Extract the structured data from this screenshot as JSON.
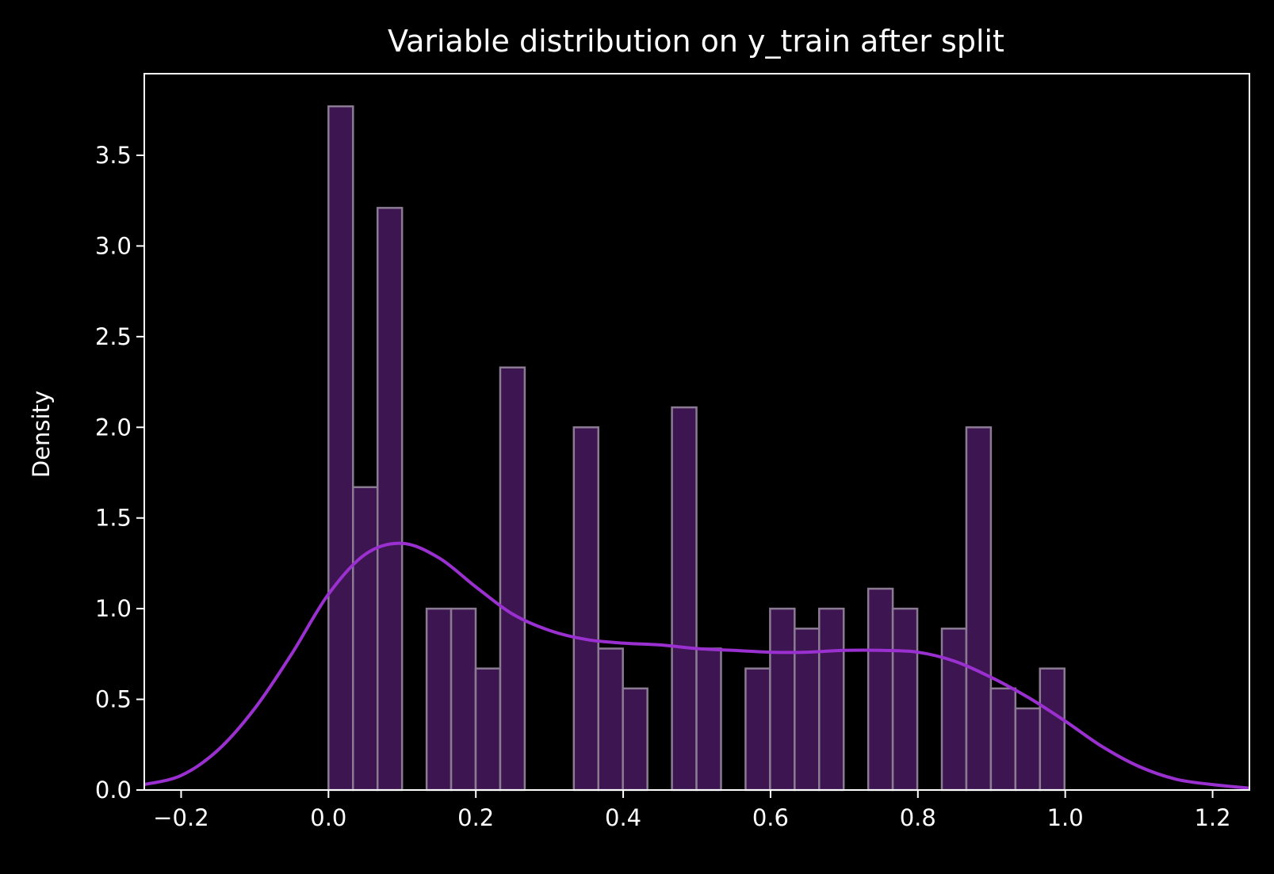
{
  "chart_data": {
    "type": "bar",
    "title": "Variable distribution on y_train after split",
    "xlabel": "",
    "ylabel": "Density",
    "xlim": [
      -0.25,
      1.25
    ],
    "ylim": [
      0.0,
      3.95
    ],
    "grid": false,
    "legend": "none",
    "x_ticks": [
      -0.2,
      0.0,
      0.2,
      0.4,
      0.6,
      0.8,
      1.0,
      1.2
    ],
    "x_tick_labels": [
      "−0.2",
      "0.0",
      "0.2",
      "0.4",
      "0.6",
      "0.8",
      "1.0",
      "1.2"
    ],
    "y_ticks": [
      0.0,
      0.5,
      1.0,
      1.5,
      2.0,
      2.5,
      3.0,
      3.5
    ],
    "y_tick_labels": [
      "0.0",
      "0.5",
      "1.0",
      "1.5",
      "2.0",
      "2.5",
      "3.0",
      "3.5"
    ],
    "histogram": {
      "bin_start": 0.0,
      "bin_width": 0.0333,
      "values": [
        3.77,
        1.67,
        3.21,
        0,
        1.0,
        1.0,
        0.67,
        2.33,
        0,
        0,
        2.0,
        0.78,
        0.56,
        0,
        2.11,
        0.78,
        0,
        0.67,
        1.0,
        0.89,
        1.0,
        0,
        1.11,
        1.0,
        0,
        0.89,
        2.0,
        0.56,
        0.45,
        0.67
      ],
      "fill_color": "#3d1550",
      "edge_color": "#8a7b93"
    },
    "kde": {
      "color": "#9b30d0",
      "x": [
        -0.25,
        -0.2,
        -0.15,
        -0.1,
        -0.05,
        0.0,
        0.05,
        0.1,
        0.15,
        0.2,
        0.25,
        0.3,
        0.35,
        0.4,
        0.45,
        0.5,
        0.55,
        0.6,
        0.65,
        0.7,
        0.75,
        0.8,
        0.85,
        0.9,
        0.95,
        1.0,
        1.05,
        1.1,
        1.15,
        1.2,
        1.25
      ],
      "y": [
        0.03,
        0.08,
        0.22,
        0.45,
        0.75,
        1.08,
        1.3,
        1.36,
        1.28,
        1.12,
        0.97,
        0.88,
        0.83,
        0.81,
        0.8,
        0.78,
        0.77,
        0.76,
        0.76,
        0.77,
        0.77,
        0.76,
        0.71,
        0.62,
        0.51,
        0.38,
        0.24,
        0.13,
        0.06,
        0.03,
        0.01
      ]
    }
  }
}
